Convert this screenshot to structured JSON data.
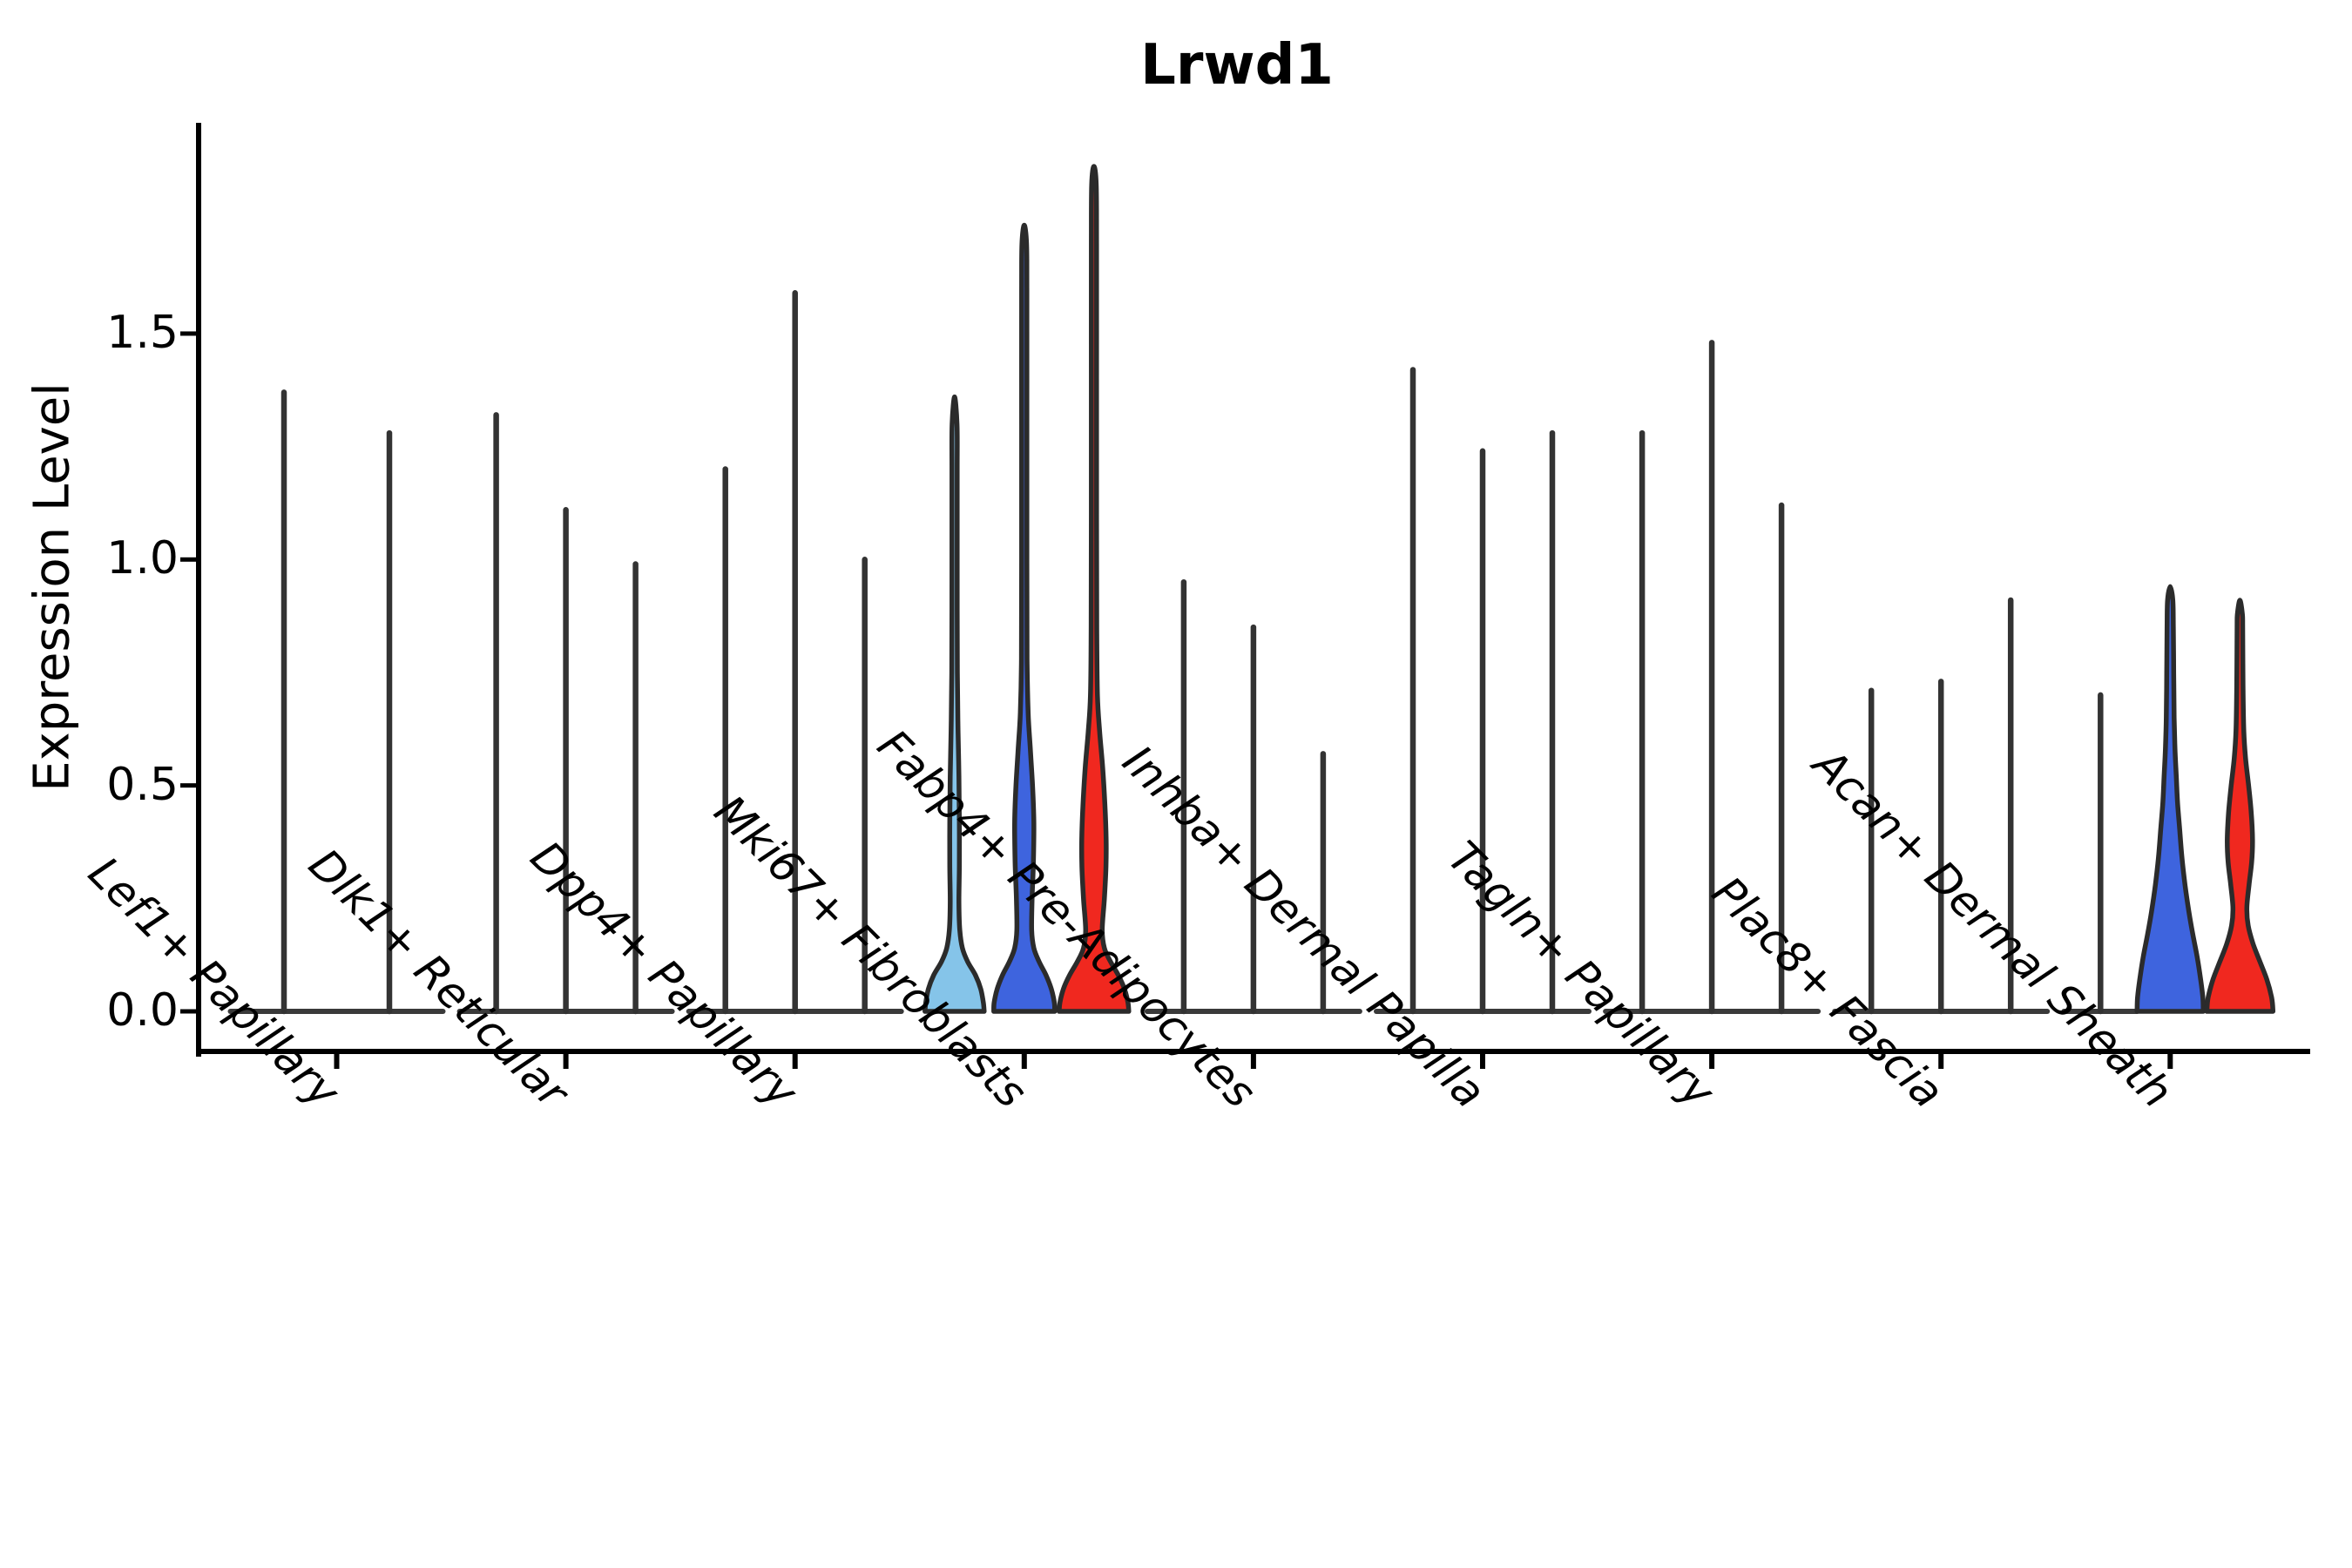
{
  "chart_data": {
    "type": "violin",
    "title": "Lrwd1",
    "ylabel": "Expression Level",
    "xlabel": "",
    "ylim": [
      -0.09,
      1.97
    ],
    "yticks": [
      0.0,
      0.5,
      1.0,
      1.5
    ],
    "ytick_labels": [
      "0.0",
      "0.5",
      "1.0",
      "1.5"
    ],
    "grid": false,
    "legend_position": "none",
    "categories": [
      "Lef1+ Papillary",
      "Dlk1+ Reticular",
      "Dpp4+ Papillary",
      "Mki67+ Fibroblasts",
      "Fabp4+ Pre-Adipocytes",
      "Inhba+ Dermal Papilla",
      "Tagln+ Papillary",
      "Plac8+ Fascia",
      "Acan+ Dermal Sheath"
    ],
    "colors": {
      "lightblue": "#85C4E9",
      "blue": "#3E64DE",
      "red": "#F0281F",
      "line": "#333333",
      "outline": "#2B2B2B",
      "baseline": "#3A3A3A"
    },
    "groups": [
      {
        "category": "Lef1+ Papillary",
        "baseline": [
          -122,
          122
        ],
        "violins": [
          {
            "max": 1.37,
            "fill": "line"
          },
          {
            "max": 1.28,
            "fill": "line"
          }
        ]
      },
      {
        "category": "Dlk1+ Reticular",
        "baseline": [
          -122,
          122
        ],
        "violins": [
          {
            "max": 1.32,
            "fill": "line"
          },
          {
            "max": 1.11,
            "fill": "line"
          },
          {
            "max": 0.99,
            "fill": "line"
          }
        ]
      },
      {
        "category": "Dpp4+ Papillary",
        "baseline": [
          -122,
          122
        ],
        "violins": [
          {
            "max": 1.2,
            "fill": "line"
          },
          {
            "max": 1.59,
            "fill": "line"
          },
          {
            "max": 1.0,
            "fill": "line"
          }
        ]
      },
      {
        "category": "Mki67+ Fibroblasts",
        "baseline": null,
        "violins": [
          {
            "max": 1.36,
            "fill": "lightblue",
            "profile": [
              [
                0,
                34
              ],
              [
                0.02,
                33
              ],
              [
                0.05,
                30
              ],
              [
                0.08,
                24
              ],
              [
                0.11,
                15
              ],
              [
                0.14,
                9
              ],
              [
                0.18,
                6
              ],
              [
                0.24,
                5
              ],
              [
                0.32,
                5.5
              ],
              [
                0.42,
                5.5
              ],
              [
                0.52,
                5
              ],
              [
                0.62,
                4
              ],
              [
                0.75,
                3.2
              ],
              [
                1.0,
                3
              ],
              [
                1.2,
                3
              ],
              [
                1.3,
                2.8
              ],
              [
                1.36,
                0
              ]
            ]
          },
          {
            "max": 1.74,
            "fill": "blue",
            "profile": [
              [
                0,
                35
              ],
              [
                0.02,
                34.5
              ],
              [
                0.05,
                31
              ],
              [
                0.08,
                25
              ],
              [
                0.11,
                17
              ],
              [
                0.14,
                11
              ],
              [
                0.18,
                8.5
              ],
              [
                0.25,
                9
              ],
              [
                0.33,
                10.5
              ],
              [
                0.42,
                11
              ],
              [
                0.5,
                9.5
              ],
              [
                0.58,
                7
              ],
              [
                0.66,
                4.5
              ],
              [
                0.78,
                3.2
              ],
              [
                1.0,
                3
              ],
              [
                1.3,
                3
              ],
              [
                1.6,
                3
              ],
              [
                1.7,
                2.6
              ],
              [
                1.74,
                0
              ]
            ]
          },
          {
            "max": 1.87,
            "fill": "red",
            "profile": [
              [
                0,
                40
              ],
              [
                0.02,
                39
              ],
              [
                0.05,
                35
              ],
              [
                0.08,
                28
              ],
              [
                0.11,
                19
              ],
              [
                0.14,
                12
              ],
              [
                0.18,
                9.5
              ],
              [
                0.25,
                12
              ],
              [
                0.32,
                13.8
              ],
              [
                0.38,
                14
              ],
              [
                0.46,
                12.5
              ],
              [
                0.54,
                10
              ],
              [
                0.62,
                6.5
              ],
              [
                0.7,
                4
              ],
              [
                0.85,
                3.2
              ],
              [
                1.1,
                3
              ],
              [
                1.4,
                3
              ],
              [
                1.7,
                3
              ],
              [
                1.83,
                2.6
              ],
              [
                1.87,
                0
              ]
            ]
          }
        ]
      },
      {
        "category": "Fabp4+ Pre-Adipocytes",
        "baseline": [
          -122,
          122
        ],
        "violins": [
          {
            "max": 0.95,
            "fill": "line"
          },
          {
            "max": 0.85,
            "fill": "line"
          },
          {
            "max": 0.57,
            "fill": "line"
          }
        ]
      },
      {
        "category": "Inhba+ Dermal Papilla",
        "baseline": [
          -122,
          122
        ],
        "violins": [
          {
            "max": 1.42,
            "fill": "line"
          },
          {
            "max": 1.24,
            "fill": "line"
          },
          {
            "max": 1.28,
            "fill": "line"
          }
        ]
      },
      {
        "category": "Tagln+ Papillary",
        "baseline": [
          -122,
          122
        ],
        "violins": [
          {
            "max": 1.28,
            "fill": "line"
          },
          {
            "max": 1.48,
            "fill": "line"
          },
          {
            "max": 1.12,
            "fill": "line"
          }
        ]
      },
      {
        "category": "Plac8+ Fascia",
        "baseline": [
          -122,
          122
        ],
        "violins": [
          {
            "max": 0.71,
            "fill": "line"
          },
          {
            "max": 0.73,
            "fill": "line"
          },
          {
            "max": 0.91,
            "fill": "line"
          }
        ]
      },
      {
        "category": "Acan+ Dermal Sheath",
        "baseline": [
          -122,
          -38
        ],
        "violins": [
          {
            "max": 0.7,
            "fill": "line"
          },
          {
            "max": 0.94,
            "fill": "blue",
            "profile": [
              [
                0,
                38
              ],
              [
                0.03,
                37.5
              ],
              [
                0.07,
                35
              ],
              [
                0.12,
                31
              ],
              [
                0.17,
                26
              ],
              [
                0.22,
                21.5
              ],
              [
                0.28,
                17
              ],
              [
                0.34,
                13.5
              ],
              [
                0.4,
                11
              ],
              [
                0.46,
                8.5
              ],
              [
                0.52,
                7
              ],
              [
                0.58,
                5.5
              ],
              [
                0.65,
                4.5
              ],
              [
                0.75,
                4
              ],
              [
                0.85,
                3.6
              ],
              [
                0.91,
                3
              ],
              [
                0.94,
                0
              ]
            ]
          },
          {
            "max": 0.91,
            "fill": "red",
            "profile": [
              [
                0,
                38
              ],
              [
                0.03,
                36.5
              ],
              [
                0.07,
                31
              ],
              [
                0.11,
                23
              ],
              [
                0.15,
                15
              ],
              [
                0.19,
                9.5
              ],
              [
                0.23,
                8
              ],
              [
                0.28,
                10.5
              ],
              [
                0.33,
                13.5
              ],
              [
                0.38,
                14.5
              ],
              [
                0.44,
                13
              ],
              [
                0.5,
                10
              ],
              [
                0.56,
                6.5
              ],
              [
                0.62,
                4.5
              ],
              [
                0.72,
                3.6
              ],
              [
                0.85,
                3.2
              ],
              [
                0.88,
                2.8
              ],
              [
                0.91,
                0
              ]
            ]
          }
        ]
      }
    ]
  }
}
